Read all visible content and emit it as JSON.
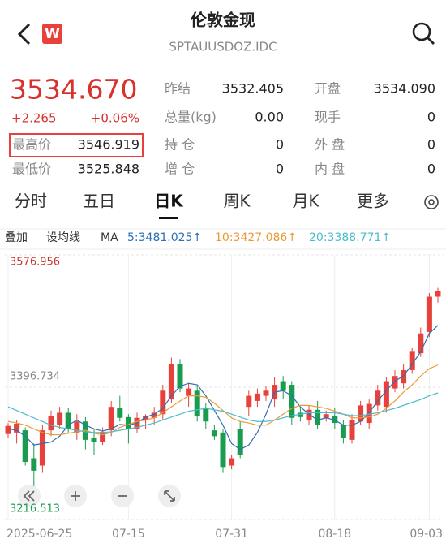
{
  "header": {
    "title": "伦敦金现",
    "subtitle": "SPTAUUSDOZ.IDC"
  },
  "quote": {
    "price": "3534.670",
    "change": "+2.265",
    "change_pct": "+0.06%",
    "stats": [
      {
        "label": "昨结",
        "value": "3532.405"
      },
      {
        "label": "开盘",
        "value": "3534.090"
      },
      {
        "label": "总量(kg)",
        "value": "0.00"
      },
      {
        "label": "现手",
        "value": "0"
      },
      {
        "label": "最高价",
        "value": "3546.919"
      },
      {
        "label": "持 仓",
        "value": "0"
      },
      {
        "label": "外 盘",
        "value": "0"
      },
      {
        "label": "最低价",
        "value": "3525.848"
      },
      {
        "label": "增 仓",
        "value": "0"
      },
      {
        "label": "内 盘",
        "value": "0"
      }
    ]
  },
  "tabs": [
    "分时",
    "五日",
    "日K",
    "周K",
    "月K",
    "更多"
  ],
  "active_tab": 2,
  "toolbar": [
    "叠加",
    "设均线"
  ],
  "chart_data": {
    "type": "candlestick",
    "indicator": "MA",
    "categories": [
      "2025-06-25",
      null,
      null,
      null,
      null,
      null,
      null,
      null,
      null,
      null,
      null,
      null,
      null,
      null,
      "07-15",
      null,
      null,
      null,
      null,
      null,
      null,
      null,
      null,
      null,
      null,
      null,
      "07-31",
      null,
      null,
      null,
      null,
      null,
      null,
      null,
      null,
      null,
      null,
      null,
      "08-18",
      null,
      null,
      null,
      null,
      null,
      null,
      null,
      null,
      null,
      null,
      "09-03",
      null
    ],
    "open": [
      3333,
      3335,
      3338,
      3300,
      3290,
      3338,
      3345,
      3362,
      3335,
      3350,
      3328,
      3322,
      3338,
      3368,
      3356,
      3340,
      3352,
      3355,
      3360,
      3380,
      3428,
      3385,
      3392,
      3368,
      3338,
      3335,
      3290,
      3340,
      3370,
      3378,
      3385,
      3380,
      3405,
      3400,
      3362,
      3352,
      3366,
      3355,
      3358,
      3345,
      3325,
      3350,
      3348,
      3372,
      3370,
      3395,
      3402,
      3420,
      3443,
      3472,
      3520
    ],
    "high": [
      3348,
      3352,
      3342,
      3320,
      3345,
      3365,
      3370,
      3368,
      3360,
      3356,
      3340,
      3342,
      3378,
      3385,
      3360,
      3362,
      3360,
      3370,
      3400,
      3437,
      3435,
      3402,
      3398,
      3375,
      3345,
      3340,
      3305,
      3350,
      3392,
      3395,
      3398,
      3410,
      3412,
      3405,
      3368,
      3372,
      3378,
      3365,
      3368,
      3352,
      3360,
      3378,
      3380,
      3400,
      3410,
      3420,
      3428,
      3450,
      3478,
      3525,
      3532
    ],
    "low": [
      3328,
      3320,
      3290,
      3262,
      3280,
      3330,
      3340,
      3335,
      3325,
      3312,
      3305,
      3318,
      3330,
      3350,
      3320,
      3335,
      3340,
      3345,
      3352,
      3375,
      3390,
      3370,
      3350,
      3340,
      3325,
      3280,
      3285,
      3300,
      3358,
      3370,
      3378,
      3370,
      3380,
      3345,
      3350,
      3345,
      3340,
      3350,
      3340,
      3320,
      3320,
      3345,
      3340,
      3365,
      3362,
      3390,
      3395,
      3415,
      3438,
      3465,
      3512
    ],
    "close": [
      3344,
      3347,
      3295,
      3283,
      3338,
      3358,
      3362,
      3340,
      3350,
      3325,
      3322,
      3336,
      3370,
      3355,
      3340,
      3355,
      3358,
      3362,
      3392,
      3428,
      3395,
      3395,
      3358,
      3350,
      3330,
      3288,
      3300,
      3305,
      3385,
      3388,
      3392,
      3400,
      3392,
      3355,
      3356,
      3366,
      3345,
      3360,
      3348,
      3328,
      3352,
      3372,
      3374,
      3392,
      3405,
      3412,
      3420,
      3445,
      3470,
      3520,
      3528
    ],
    "up_color": "#e8413c",
    "down_color": "#1a9c4f",
    "series": [
      {
        "name": "5:3481.025↑",
        "color": "#2e6fb5",
        "values": [
          3340,
          3338,
          3330,
          3318,
          3320,
          3322,
          3330,
          3345,
          3352,
          3345,
          3340,
          3337,
          3340,
          3346,
          3345,
          3348,
          3356,
          3360,
          3368,
          3385,
          3398,
          3402,
          3400,
          3385,
          3365,
          3345,
          3320,
          3312,
          3318,
          3335,
          3360,
          3390,
          3392,
          3385,
          3370,
          3360,
          3352,
          3355,
          3352,
          3345,
          3345,
          3350,
          3362,
          3378,
          3392,
          3405,
          3412,
          3428,
          3445,
          3470,
          3481
        ]
      },
      {
        "name": "10:3427.086↑",
        "color": "#eb9a35",
        "values": [
          3350,
          3348,
          3345,
          3340,
          3335,
          3332,
          3332,
          3334,
          3336,
          3338,
          3334,
          3332,
          3335,
          3342,
          3346,
          3350,
          3352,
          3355,
          3362,
          3370,
          3378,
          3385,
          3385,
          3383,
          3375,
          3365,
          3355,
          3350,
          3348,
          3345,
          3345,
          3352,
          3360,
          3368,
          3372,
          3372,
          3370,
          3368,
          3364,
          3360,
          3355,
          3355,
          3356,
          3360,
          3368,
          3378,
          3390,
          3400,
          3412,
          3422,
          3427
        ]
      },
      {
        "name": "20:3388.771↑",
        "color": "#4cbccc",
        "values": [
          3370,
          3365,
          3360,
          3355,
          3350,
          3345,
          3342,
          3340,
          3338,
          3336,
          3335,
          3335,
          3336,
          3338,
          3340,
          3342,
          3345,
          3348,
          3352,
          3356,
          3360,
          3364,
          3366,
          3368,
          3366,
          3364,
          3360,
          3356,
          3352,
          3350,
          3350,
          3352,
          3355,
          3358,
          3360,
          3362,
          3362,
          3362,
          3362,
          3360,
          3358,
          3358,
          3360,
          3362,
          3365,
          3368,
          3372,
          3376,
          3380,
          3385,
          3389
        ]
      }
    ],
    "ylim": [
      3216.513,
      3576.956
    ],
    "yticks": [
      3216.513,
      3396.734,
      3576.956
    ],
    "grid": true
  }
}
